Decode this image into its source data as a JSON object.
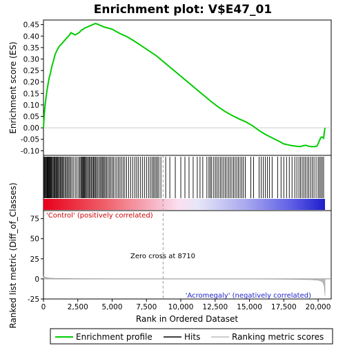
{
  "chart_data": {
    "type": "line",
    "title": "Enrichment plot: V$E47_01",
    "panels": {
      "enrichment": {
        "ylabel": "Enrichment score (ES)",
        "ylim": [
          -0.12,
          0.47
        ],
        "yticks": [
          "-0.10",
          "-0.05",
          "0.00",
          "0.05",
          "0.10",
          "0.15",
          "0.20",
          "0.25",
          "0.30",
          "0.35",
          "0.40",
          "0.45"
        ],
        "series": [
          {
            "name": "Enrichment profile",
            "color": "#00cc00",
            "x": [
              0,
              60,
              120,
              180,
              250,
              330,
              420,
              520,
              620,
              720,
              850,
              1000,
              1150,
              1300,
              1450,
              1600,
              1750,
              1900,
              2000,
              2150,
              2300,
              2450,
              2600,
              2750,
              2900,
              3000,
              3200,
              3400,
              3600,
              3800,
              4000,
              4200,
              4400,
              4700,
              5000,
              5300,
              5600,
              6000,
              6300,
              6700,
              7200,
              7700,
              8200,
              8700,
              9200,
              9700,
              10200,
              10700,
              11200,
              11700,
              12200,
              12700,
              13200,
              13700,
              14200,
              14700,
              15200,
              15700,
              16200,
              16700,
              17200,
              17500,
              17800,
              18100,
              18400,
              18700,
              18900,
              19100,
              19300,
              19500,
              19700,
              19900,
              20000,
              20100,
              20200,
              20300,
              20400,
              20450,
              20500
            ],
            "y": [
              0.0,
              0.06,
              0.1,
              0.13,
              0.16,
              0.19,
              0.22,
              0.24,
              0.27,
              0.29,
              0.32,
              0.34,
              0.355,
              0.365,
              0.375,
              0.385,
              0.395,
              0.405,
              0.415,
              0.41,
              0.405,
              0.41,
              0.415,
              0.425,
              0.43,
              0.435,
              0.44,
              0.445,
              0.45,
              0.455,
              0.45,
              0.445,
              0.44,
              0.435,
              0.43,
              0.42,
              0.41,
              0.4,
              0.39,
              0.375,
              0.355,
              0.335,
              0.315,
              0.29,
              0.265,
              0.24,
              0.215,
              0.19,
              0.165,
              0.14,
              0.115,
              0.092,
              0.072,
              0.055,
              0.04,
              0.027,
              0.01,
              -0.012,
              -0.03,
              -0.045,
              -0.06,
              -0.07,
              -0.074,
              -0.078,
              -0.08,
              -0.082,
              -0.078,
              -0.076,
              -0.08,
              -0.082,
              -0.082,
              -0.08,
              -0.07,
              -0.055,
              -0.042,
              -0.04,
              -0.045,
              -0.02,
              0.0
            ]
          }
        ]
      },
      "hits": {
        "legend_label": "Hits",
        "positions": [
          20,
          70,
          110,
          160,
          210,
          260,
          300,
          350,
          400,
          440,
          490,
          530,
          580,
          640,
          700,
          760,
          810,
          860,
          920,
          980,
          1040,
          1100,
          1160,
          1230,
          1300,
          1360,
          1420,
          1500,
          1580,
          1660,
          1740,
          1820,
          1900,
          1990,
          2080,
          2200,
          2320,
          2440,
          2560,
          2650,
          2720,
          2790,
          2850,
          2900,
          2950,
          3000,
          3060,
          3120,
          3200,
          3280,
          3350,
          3420,
          3500,
          3570,
          3640,
          3710,
          3780,
          3850,
          3940,
          4030,
          4120,
          4200,
          4280,
          4350,
          4430,
          4510,
          4600,
          4700,
          4800,
          4900,
          5000,
          5100,
          5220,
          5340,
          5460,
          5570,
          5680,
          5800,
          5920,
          6050,
          6200,
          6350,
          6500,
          6650,
          6780,
          6900,
          7050,
          7200,
          7350,
          7500,
          7650,
          7780,
          7900,
          8000,
          8100,
          8200,
          8300,
          8400,
          8550,
          8900,
          9200,
          9600,
          10000,
          10300,
          10600,
          10900,
          11200,
          11400,
          11600,
          11900,
          12050,
          12150,
          12250,
          12400,
          12520,
          12640,
          12760,
          12880,
          13000,
          13120,
          13240,
          13360,
          13480,
          13600,
          13720,
          13840,
          13960,
          14080,
          14200,
          14320,
          14440,
          14560,
          14700,
          15100,
          15300,
          15700,
          15850,
          16000,
          16150,
          16300,
          16450,
          16650,
          17050,
          17300,
          17500,
          17700,
          17900,
          18100,
          18300,
          18450,
          18600,
          18720,
          18840,
          18960,
          19080,
          19200,
          19320,
          19450,
          19580,
          19700,
          19850,
          20000,
          20100,
          20200,
          20300,
          20400
        ],
        "x_max": 20500
      },
      "ranked_metric": {
        "ylabel": "Ranked list metric (Diff_of_Classes)",
        "xlabel": "Rank in Ordered Dataset",
        "ylim": [
          -25,
          85
        ],
        "yticks": [
          "-25",
          "0",
          "25",
          "50",
          "75"
        ],
        "xticks": [
          "0",
          "2,500",
          "5,000",
          "7,500",
          "10,000",
          "12,500",
          "15,000",
          "17,500",
          "20,000"
        ],
        "xvalues": [
          0,
          2500,
          5000,
          7500,
          10000,
          12500,
          15000,
          17500,
          20000
        ],
        "x": [
          0,
          40,
          100,
          200,
          400,
          800,
          1500,
          2500,
          4000,
          6000,
          8710,
          11000,
          13000,
          15000,
          17000,
          18500,
          19500,
          20000,
          20200,
          20350,
          20450,
          20500
        ],
        "y": [
          3.5,
          2.8,
          2.2,
          1.8,
          1.2,
          0.8,
          0.5,
          0.3,
          0.15,
          0.05,
          0.0,
          -0.05,
          -0.1,
          -0.2,
          -0.35,
          -0.6,
          -1.0,
          -1.6,
          -2.5,
          -4.5,
          -9.0,
          -21.0
        ],
        "zero_cross_label": "Zero cross at 8710",
        "zero_cross": 8710,
        "positive_label": "'Control' (positively correlated)",
        "negative_label": "'Acromegaly' (negatively correlated)"
      }
    },
    "legend": {
      "items": [
        "Enrichment profile",
        "Hits",
        "Ranking metric scores"
      ],
      "placement": "bottom"
    }
  }
}
